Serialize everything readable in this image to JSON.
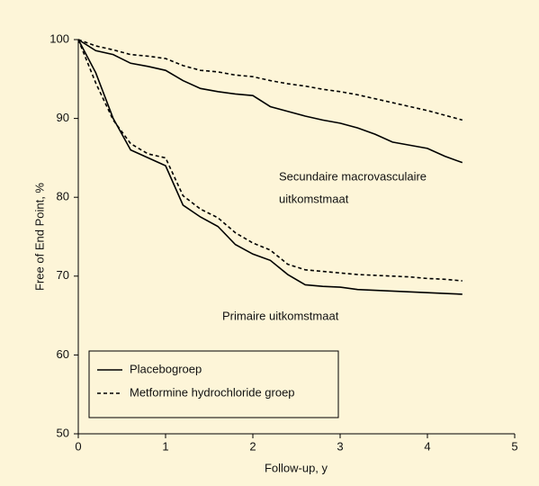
{
  "chart_data": {
    "type": "line",
    "xlabel": "Follow-up, y",
    "ylabel": "Free of End Point, %",
    "annotations": [
      "Secundaire macrovasculaire",
      "uitkomstmaat",
      "Primaire uitkomstmaat"
    ],
    "x": [
      0,
      0.2,
      0.4,
      0.6,
      0.8,
      1.0,
      1.2,
      1.4,
      1.6,
      1.8,
      2.0,
      2.2,
      2.4,
      2.6,
      2.8,
      3.0,
      3.2,
      3.4,
      3.6,
      3.8,
      4.0,
      4.2,
      4.4
    ],
    "series": [
      {
        "name": "Placebogroep",
        "color": "#000000",
        "linestyle": "solid",
        "curves": [
          [
            100,
            98.6,
            98.1,
            97.0,
            96.6,
            96.1,
            94.8,
            93.8,
            93.4,
            93.1,
            92.9,
            91.5,
            90.9,
            90.3,
            89.8,
            89.4,
            88.8,
            88.0,
            87.0,
            86.6,
            86.2,
            85.2,
            84.4
          ],
          [
            100,
            95.8,
            90.0,
            86.0,
            85.0,
            84.0,
            79.0,
            77.5,
            76.3,
            74.0,
            72.8,
            72.0,
            70.2,
            68.9,
            68.7,
            68.6,
            68.3,
            68.2,
            68.1,
            68.0,
            67.9,
            67.8,
            67.7
          ]
        ]
      },
      {
        "name": "Metformine hydrochloride groep",
        "color": "#000000",
        "linestyle": "dashed",
        "curves": [
          [
            100,
            99.2,
            98.7,
            98.1,
            97.9,
            97.6,
            96.7,
            96.1,
            95.9,
            95.5,
            95.3,
            94.8,
            94.4,
            94.1,
            93.7,
            93.4,
            93.0,
            92.5,
            92.0,
            91.5,
            91.0,
            90.4,
            89.8
          ],
          [
            100,
            94.5,
            89.8,
            86.8,
            85.5,
            85.0,
            80.2,
            78.5,
            77.4,
            75.5,
            74.2,
            73.3,
            71.5,
            70.8,
            70.6,
            70.4,
            70.2,
            70.1,
            70.0,
            69.9,
            69.7,
            69.6,
            69.4
          ]
        ]
      }
    ],
    "xlim": [
      0,
      5
    ],
    "xticks": [
      0,
      1,
      2,
      3,
      4,
      5
    ],
    "ylim": [
      50,
      100
    ],
    "yticks": [
      50,
      60,
      70,
      80,
      90,
      100
    ],
    "grid": false,
    "legend": "lower left"
  }
}
